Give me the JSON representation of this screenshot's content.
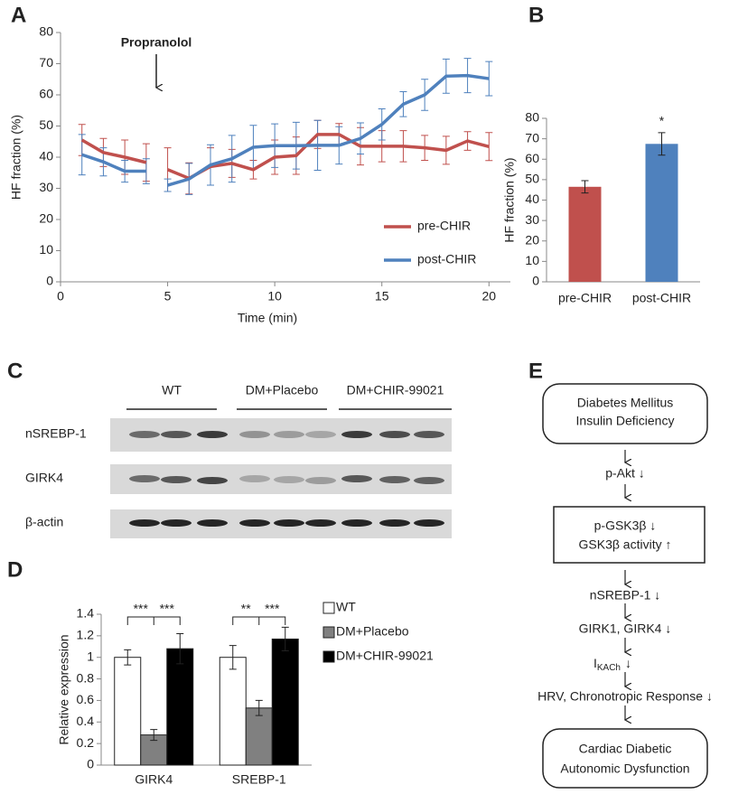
{
  "chart_data": [
    {
      "panel": "A",
      "type": "line",
      "y_label": "HF fraction (%)",
      "x_label": "Time (min)",
      "annotation": "Propranolol",
      "x": [
        1,
        2,
        3,
        4,
        null,
        5,
        6,
        7,
        8,
        9,
        10,
        11,
        12,
        13,
        14,
        15,
        16,
        17,
        18,
        19,
        20
      ],
      "series": [
        {
          "name": "pre-CHIR",
          "color": "#c0504d",
          "values": [
            45.5,
            41.5,
            40,
            38.3,
            null,
            36,
            33.2,
            37,
            38,
            36,
            40,
            40.5,
            47.3,
            47.3,
            43.5,
            43.5,
            43.5,
            43,
            42.2,
            45.2,
            43.4
          ],
          "errors": [
            5,
            4.5,
            5.5,
            6,
            null,
            7,
            5,
            6,
            4.5,
            3,
            5.5,
            6,
            4.5,
            3.5,
            6,
            5,
            5,
            4,
            4.5,
            3,
            4.5
          ]
        },
        {
          "name": "post-CHIR",
          "color": "#4f81bd",
          "values": [
            40.8,
            38.5,
            35.5,
            35.5,
            null,
            31,
            33,
            37.5,
            39.5,
            43.2,
            43.7,
            43.7,
            43.8,
            43.8,
            46,
            50.5,
            57,
            60,
            66,
            66.2,
            65.2
          ],
          "errors": [
            6.5,
            4.5,
            3.5,
            4,
            null,
            2,
            5,
            6.5,
            7.5,
            7,
            7,
            7.5,
            8,
            6,
            5,
            5,
            4,
            5,
            5.5,
            5.5,
            5.5
          ]
        }
      ],
      "xlim": [
        0,
        21
      ],
      "xticks": [
        0,
        5,
        10,
        15,
        20
      ],
      "ylim": [
        0,
        80
      ],
      "yticks": [
        0,
        10,
        20,
        30,
        40,
        50,
        60,
        70,
        80
      ],
      "legend": "lower right"
    },
    {
      "panel": "B",
      "type": "bar",
      "y_label": "HF fraction (%)",
      "categories": [
        "pre-CHIR",
        "post-CHIR"
      ],
      "values": [
        46.5,
        67.5
      ],
      "errors": [
        3,
        5.5
      ],
      "colors": [
        "#c0504d",
        "#4f81bd"
      ],
      "annotations": [
        null,
        "*"
      ],
      "ylim": [
        0,
        80
      ],
      "yticks": [
        0,
        10,
        20,
        30,
        40,
        50,
        60,
        70,
        80
      ]
    },
    {
      "panel": "D",
      "type": "grouped_bar",
      "y_label": "Relative expression",
      "categories": [
        "GIRK4",
        "SREBP-1"
      ],
      "series": [
        {
          "name": "WT",
          "color": "#ffffff",
          "values": [
            1,
            1
          ],
          "errors": [
            0.07,
            0.11
          ]
        },
        {
          "name": "DM+Placebo",
          "color": "#808080",
          "values": [
            0.28,
            0.53
          ],
          "errors": [
            0.05,
            0.07
          ]
        },
        {
          "name": "DM+CHIR-99021",
          "color": "#000000",
          "values": [
            1.08,
            1.17
          ],
          "errors": [
            0.14,
            0.11
          ]
        }
      ],
      "significance": [
        [
          "***",
          "***"
        ],
        [
          "**",
          "***"
        ]
      ],
      "ylim": [
        0,
        1.4
      ],
      "yticks": [
        0,
        0.2,
        0.4,
        0.6,
        0.8,
        1,
        1.2,
        1.4
      ],
      "legend": "right"
    }
  ],
  "blot": {
    "panel": "C",
    "groups": [
      "WT",
      "DM+Placebo",
      "DM+CHIR-99021"
    ],
    "rows": [
      "nSREBP-1",
      "GIRK4",
      "β-actin"
    ]
  },
  "flow": {
    "panel": "E",
    "nodes": [
      {
        "lines": [
          "Diabetes Mellitus",
          "Insulin Deficiency"
        ]
      },
      {
        "lines": [
          "p-Akt ↓"
        ]
      },
      {
        "lines": [
          "p-GSK3β ↓",
          "GSK3β activity ↑"
        ]
      },
      {
        "lines": [
          "nSREBP-1 ↓"
        ]
      },
      {
        "lines": [
          "GIRK1, GIRK4 ↓"
        ]
      },
      {
        "parts": [
          "I",
          "KACh",
          "↓"
        ]
      },
      {
        "lines": [
          "HRV, Chronotropic Response ↓"
        ]
      },
      {
        "lines": [
          "Cardiac Diabetic",
          "Autonomic Dysfunction"
        ]
      }
    ]
  }
}
